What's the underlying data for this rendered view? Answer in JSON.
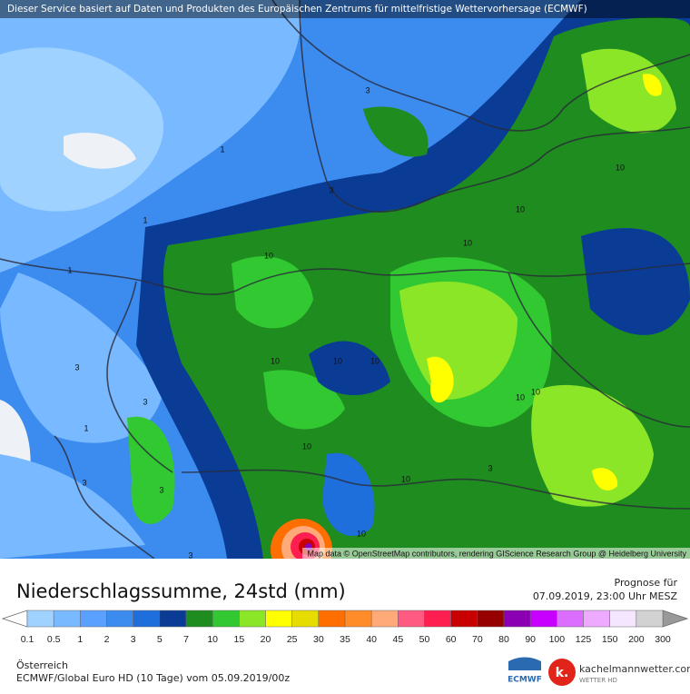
{
  "header": {
    "banner": "Dieser Service basiert auf Daten und Produkten des Europäischen Zentrums für mittelfristige Wettervorhersage (ECMWF)"
  },
  "map": {
    "attribution": "Map data © OpenStreetMap contributors, rendering GIScience Research Group @ Heidelberg University",
    "contour_labels": [
      3,
      1,
      3,
      1,
      1,
      10,
      10,
      10,
      10,
      3,
      10,
      10,
      10,
      3,
      10,
      10,
      1,
      10,
      3,
      3,
      10,
      3,
      10,
      3
    ]
  },
  "legend": {
    "title": "Niederschlagssumme, 24std (mm)",
    "forecast_label": "Prognose für",
    "forecast_time": "07.09.2019, 23:00 Uhr MESZ",
    "scale": {
      "values": [
        0.1,
        0.5,
        1,
        2,
        3,
        5,
        7,
        10,
        15,
        20,
        25,
        30,
        35,
        40,
        45,
        50,
        60,
        70,
        80,
        90,
        100,
        125,
        150,
        200,
        300
      ],
      "colors": [
        "#a0d2ff",
        "#78b9ff",
        "#5aa0ff",
        "#3c8cf0",
        "#1e6edc",
        "#0a3c96",
        "#1e8c1e",
        "#32c832",
        "#8ce628",
        "#ffff00",
        "#e6dc00",
        "#ff6e00",
        "#ff8c28",
        "#ffaa78",
        "#ff5a82",
        "#ff1e50",
        "#c80000",
        "#960000",
        "#8c00b4",
        "#c800ff",
        "#dc6eff",
        "#eeaaff",
        "#f5e6ff",
        "#d2d2d2"
      ],
      "below_color": "#ffffff",
      "above_color": "#999999"
    }
  },
  "footer": {
    "region": "Österreich",
    "model": "ECMWF/Global Euro HD (10 Tage) vom 05.09.2019/00z",
    "logos": [
      "ECMWF",
      "kachelmannwetter.com",
      "WETTER HD",
      "k."
    ]
  }
}
